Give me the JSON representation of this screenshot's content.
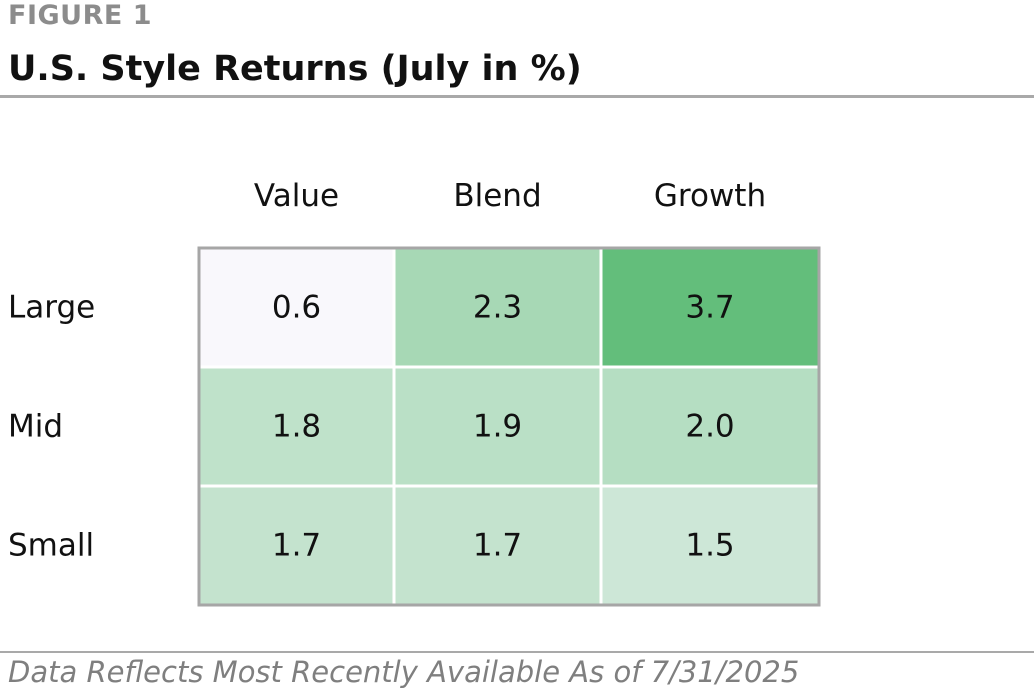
{
  "figure": {
    "label": "FIGURE 1",
    "title": "U.S. Style Returns (July in %)",
    "footnote": "Data Reflects Most Recently Available As of 7/31/2025"
  },
  "chart_data": {
    "type": "heatmap",
    "title": "U.S. Style Returns (July in %)",
    "columns": [
      "Value",
      "Blend",
      "Growth"
    ],
    "rows": [
      "Large",
      "Mid",
      "Small"
    ],
    "values": [
      [
        0.6,
        2.3,
        3.7
      ],
      [
        1.8,
        1.9,
        2.0
      ],
      [
        1.7,
        1.7,
        1.5
      ]
    ],
    "value_labels": [
      [
        "0.6",
        "2.3",
        "3.7"
      ],
      [
        "1.8",
        "1.9",
        "2.0"
      ],
      [
        "1.7",
        "1.7",
        "1.5"
      ]
    ],
    "color_scale": {
      "low_color": "#f9f8fc",
      "high_color": "#63be7b",
      "min": 0.6,
      "max": 3.7
    },
    "grid_line_color": "#ffffff",
    "border_color": "#a6a6a6"
  }
}
